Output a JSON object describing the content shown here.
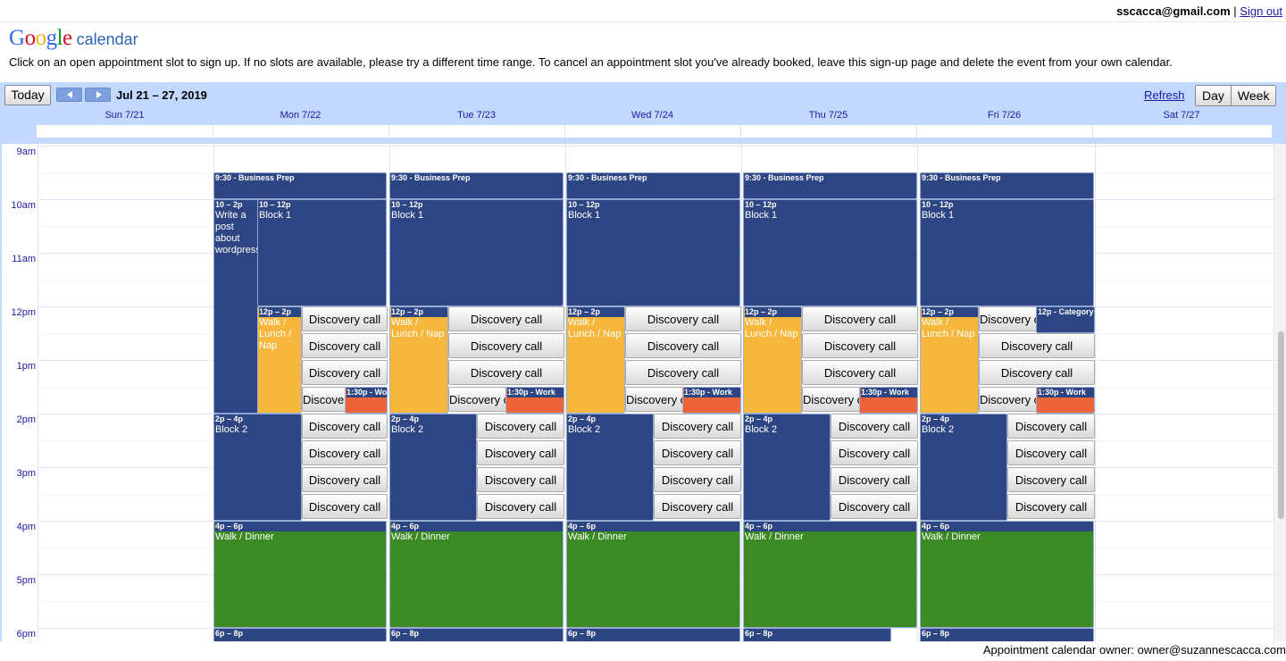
{
  "account": {
    "email": "sscacca@gmail.com",
    "separator": "|",
    "signout": "Sign out"
  },
  "logo": {
    "google": "Google",
    "calendar": "calendar"
  },
  "instructions": "Click on an open appointment slot to sign up. If no slots are available, please try a different time range. To cancel an appointment slot you've already booked, leave this sign-up page and delete the event from your own calendar.",
  "toolbar": {
    "today": "Today",
    "date_range": "Jul 21 – 27, 2019",
    "refresh": "Refresh",
    "day": "Day",
    "week": "Week"
  },
  "days": [
    "Sun 7/21",
    "Mon 7/22",
    "Tue 7/23",
    "Wed 7/24",
    "Thu 7/25",
    "Fri 7/26",
    "Sat 7/27"
  ],
  "hours": [
    "9am",
    "10am",
    "11am",
    "12pm",
    "1pm",
    "2pm",
    "3pm",
    "4pm",
    "5pm",
    "6pm"
  ],
  "events": {
    "business_prep": "9:30 - Business Prep",
    "write_time": "10 – 2p",
    "write_title": "Write a post about wordpress",
    "block1_time": "10 – 12p",
    "block1_title": "Block 1",
    "walk_time": "12p – 2p",
    "walk_title": "Walk / Lunch / Nap",
    "work_time": "1:30p - Work",
    "block2_time": "2p – 4p",
    "block2_title": "Block 2",
    "dinner_time": "4p – 6p",
    "dinner_title": "Walk / Dinner",
    "evening_time": "6p – 8p",
    "category_time": "12p - Category",
    "discovery": "Discovery call"
  },
  "footer": "Appointment calendar owner: owner@suzannescacca.com",
  "colors": {
    "header_bg": "#c3d9ff",
    "event_blue": "#2e4583",
    "event_orange": "#f6b73c",
    "event_green": "#3b8a23",
    "event_red": "#ee6439"
  }
}
